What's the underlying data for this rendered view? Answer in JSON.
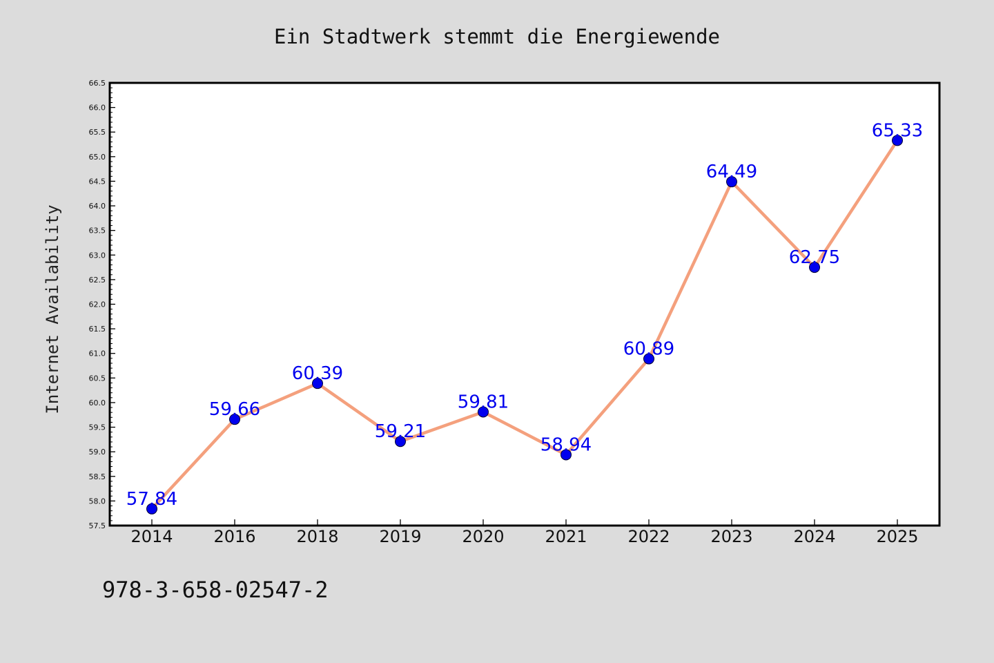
{
  "chart_data": {
    "type": "line",
    "title": "Ein Stadtwerk stemmt die Energiewende",
    "xlabel": "",
    "ylabel": "Internet Availability",
    "categories": [
      "2014",
      "2016",
      "2018",
      "2019",
      "2020",
      "2021",
      "2022",
      "2023",
      "2024",
      "2025"
    ],
    "series": [
      {
        "values": [
          57.84,
          59.66,
          60.39,
          59.21,
          59.81,
          58.94,
          60.89,
          64.49,
          62.75,
          65.33
        ],
        "labels": [
          "57.84",
          "59.66",
          "60.39",
          "59.21",
          "59.81",
          "58.94",
          "60.89",
          "64.49",
          "62.75",
          "65.33"
        ]
      }
    ],
    "ylim": [
      57.5,
      66.5
    ],
    "yticks": [
      "57.5",
      "58.0",
      "58.5",
      "59.0",
      "59.5",
      "60.0",
      "60.5",
      "61.0",
      "61.5",
      "62.0",
      "62.5",
      "63.0",
      "63.5",
      "64.0",
      "64.5",
      "65.0",
      "65.5",
      "66.0",
      "66.5"
    ],
    "grid": false,
    "line_color": "#f4a07d",
    "marker_color": "#0000ee",
    "label_color": "#0000ee",
    "background_color": "#dcdcdc",
    "plot_background_color": "#ffffff"
  },
  "footer": {
    "isbn": "978-3-658-02547-2"
  }
}
